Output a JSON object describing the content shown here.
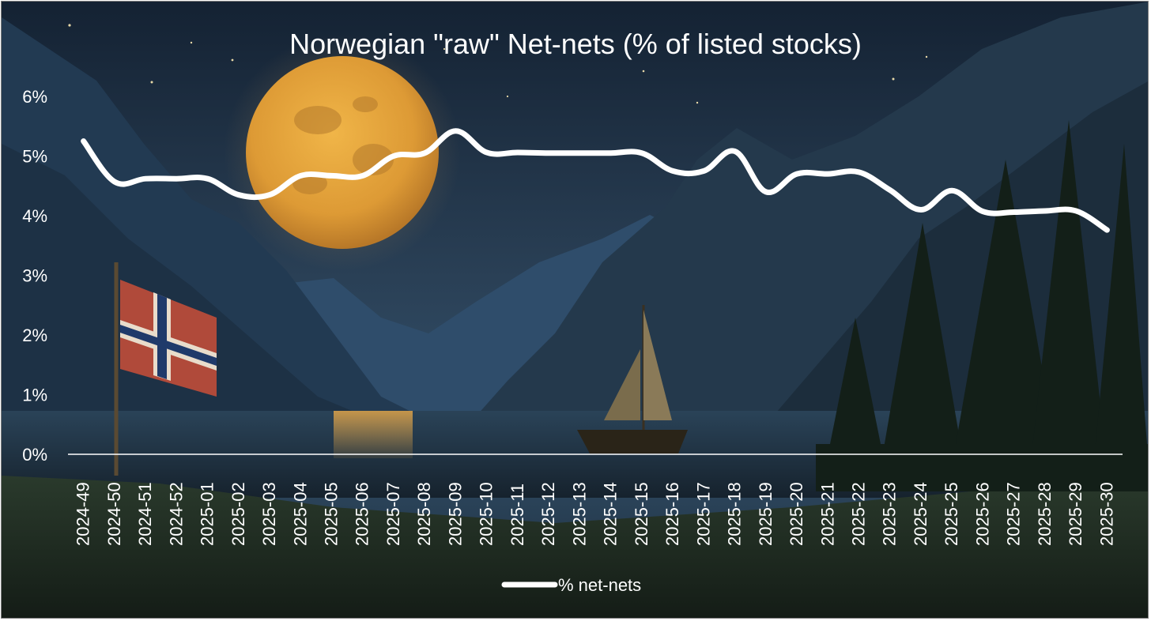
{
  "chart_data": {
    "type": "line",
    "title": "Norwegian \"raw\" Net-nets (% of listed stocks)",
    "xlabel": "",
    "ylabel": "",
    "categories": [
      "2024-49",
      "2024-50",
      "2024-51",
      "2024-52",
      "2025-01",
      "2025-02",
      "2025-03",
      "2025-04",
      "2025-05",
      "2025-06",
      "2025-07",
      "2025-08",
      "2025-09",
      "2025-10",
      "2025-11",
      "2025-12",
      "2025-13",
      "2025-14",
      "2025-15",
      "2025-16",
      "2025-17",
      "2025-18",
      "2025-19",
      "2025-20",
      "2025-21",
      "2025-22",
      "2025-23",
      "2025-24",
      "2025-25",
      "2025-26",
      "2025-27",
      "2025-28",
      "2025-29",
      "2025-30"
    ],
    "series": [
      {
        "name": "% net-nets",
        "values": [
          5.25,
          4.57,
          4.62,
          4.62,
          4.62,
          4.35,
          4.35,
          4.67,
          4.67,
          4.67,
          5.0,
          5.05,
          5.42,
          5.06,
          5.06,
          5.05,
          5.05,
          5.05,
          5.05,
          4.75,
          4.75,
          5.08,
          4.4,
          4.7,
          4.7,
          4.73,
          4.43,
          4.1,
          4.42,
          4.07,
          4.06,
          4.08,
          4.08,
          3.76
        ]
      }
    ],
    "ylim": [
      0,
      6
    ],
    "yticks": [
      "0%",
      "1%",
      "2%",
      "3%",
      "4%",
      "5%",
      "6%"
    ],
    "grid": false,
    "legend": "bottom",
    "line_color": "#ffffff"
  },
  "colors": {
    "sky_top": "#1b2a3e",
    "sky_mid": "#2c4358",
    "moon": "#e3a53c",
    "mountain_far": "#2c4a68",
    "mountain_near": "#213547",
    "water": "#1f3345",
    "reflection": "#c9923a",
    "forest": "#111c16",
    "flag_red": "#b04a3a",
    "flag_cross": "#1f3a6a"
  }
}
